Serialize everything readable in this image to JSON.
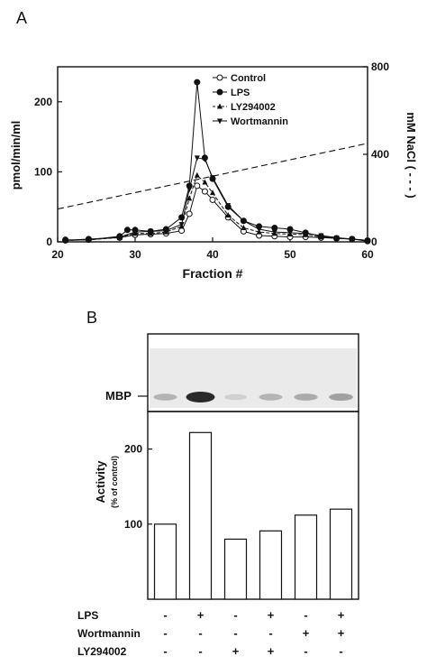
{
  "panel_a": {
    "label": "A",
    "chart_data": {
      "type": "line",
      "xlabel": "Fraction #",
      "ylabel": "pmol/min/ml",
      "y2label": "mM NaCl ( - - - )",
      "xlim": [
        20,
        60
      ],
      "ylim": [
        0,
        250
      ],
      "y2lim": [
        0,
        800
      ],
      "x_ticks": [
        20,
        30,
        40,
        50,
        60
      ],
      "y_ticks": [
        0,
        100,
        200
      ],
      "y2_ticks": [
        0,
        400,
        800
      ],
      "legend_position": "top-right",
      "series": [
        {
          "name": "Control",
          "marker": "circle-open",
          "dash": "solid",
          "x": [
            21,
            24,
            28,
            30,
            32,
            34,
            36,
            37,
            38,
            39,
            40,
            42,
            44,
            46,
            48,
            50,
            52,
            54,
            56,
            58,
            60
          ],
          "y": [
            2,
            4,
            6,
            10,
            11,
            12,
            16,
            40,
            80,
            72,
            60,
            35,
            15,
            9,
            8,
            7,
            7,
            6,
            5,
            4,
            1
          ]
        },
        {
          "name": "LPS",
          "marker": "circle-filled",
          "dash": "solid",
          "x": [
            21,
            24,
            28,
            29,
            30,
            32,
            34,
            36,
            37,
            38,
            39,
            40,
            42,
            44,
            46,
            48,
            50,
            52,
            54,
            56,
            58,
            60
          ],
          "y": [
            3,
            3,
            8,
            17,
            17,
            15,
            18,
            35,
            80,
            228,
            120,
            90,
            50,
            30,
            22,
            20,
            18,
            13,
            8,
            5,
            4,
            2
          ]
        },
        {
          "name": "LY294002",
          "marker": "triangle-up",
          "dash": "dashed",
          "x": [
            21,
            24,
            28,
            30,
            32,
            34,
            36,
            37,
            38,
            39,
            40,
            42,
            44,
            46,
            48,
            50,
            52,
            54,
            56,
            58,
            60
          ],
          "y": [
            2,
            3,
            6,
            12,
            12,
            14,
            22,
            62,
            95,
            85,
            70,
            38,
            20,
            14,
            12,
            11,
            10,
            7,
            5,
            4,
            2
          ]
        },
        {
          "name": "Wortmannin",
          "marker": "triangle-down",
          "dash": "solid",
          "x": [
            21,
            24,
            28,
            30,
            32,
            34,
            36,
            37,
            38,
            39,
            40,
            42,
            44,
            46,
            48,
            50,
            52,
            54,
            56,
            58,
            60
          ],
          "y": [
            2,
            3,
            7,
            14,
            15,
            16,
            25,
            75,
            120,
            118,
            92,
            52,
            30,
            18,
            14,
            13,
            12,
            9,
            6,
            4,
            2
          ]
        },
        {
          "name": "NaCl gradient",
          "axis": "right",
          "dash": "long-dashed",
          "x": [
            20,
            60
          ],
          "y": [
            150,
            450
          ]
        }
      ]
    }
  },
  "panel_b": {
    "label": "B",
    "blot_label": "MBP",
    "blot_band_intensity": [
      0.25,
      1.0,
      0.1,
      0.25,
      0.3,
      0.35
    ],
    "chart_data": {
      "type": "bar",
      "ylabel": "Activity",
      "ylabel_sub": "(% of control)",
      "ylim": [
        0,
        250
      ],
      "y_ticks": [
        100,
        200
      ],
      "values": [
        100,
        222,
        80,
        91,
        112,
        120
      ],
      "conditions": [
        {
          "label": "LPS",
          "signs": [
            "-",
            "+",
            "-",
            "+",
            "-",
            "+"
          ]
        },
        {
          "label": "Wortmannin",
          "signs": [
            "-",
            "-",
            "-",
            "-",
            "+",
            "+"
          ]
        },
        {
          "label": "LY294002",
          "signs": [
            "-",
            "-",
            "+",
            "+",
            "-",
            "-"
          ]
        }
      ]
    }
  }
}
